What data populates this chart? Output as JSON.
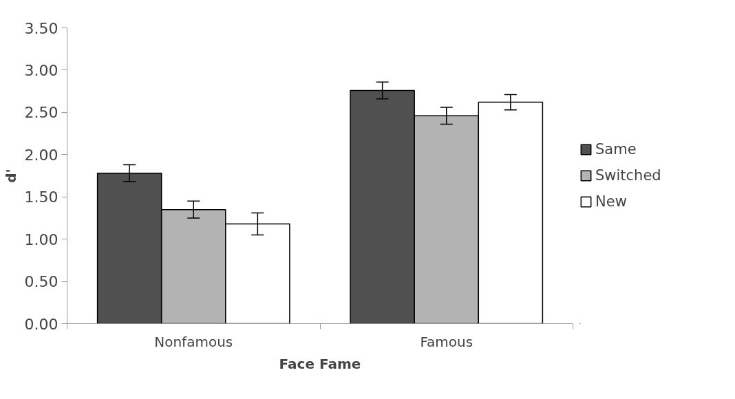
{
  "chart_data": {
    "type": "bar",
    "xlabel": "Face Fame",
    "ylabel": "d'",
    "categories": [
      "Nonfamous",
      "Famous"
    ],
    "series": [
      {
        "name": "Same",
        "color": "#505050",
        "values": [
          1.78,
          2.76
        ],
        "errors": [
          0.1,
          0.1
        ]
      },
      {
        "name": "Switched",
        "color": "#b3b3b3",
        "values": [
          1.35,
          2.46
        ],
        "errors": [
          0.1,
          0.1
        ]
      },
      {
        "name": "New",
        "color": "#ffffff",
        "values": [
          1.18,
          2.62
        ],
        "errors": [
          0.13,
          0.09
        ]
      }
    ],
    "ylim": [
      0,
      3.5
    ],
    "yticks": [
      {
        "value": 0,
        "label": "0.00"
      },
      {
        "value": 0.5,
        "label": "0.50"
      },
      {
        "value": 1,
        "label": "1.00"
      },
      {
        "value": 1.5,
        "label": "1.50"
      },
      {
        "value": 2,
        "label": "2.00"
      },
      {
        "value": 2.5,
        "label": "2.50"
      },
      {
        "value": 3,
        "label": "3.00"
      },
      {
        "value": 3.5,
        "label": "3.50"
      }
    ],
    "grid": false,
    "legend": "right"
  }
}
